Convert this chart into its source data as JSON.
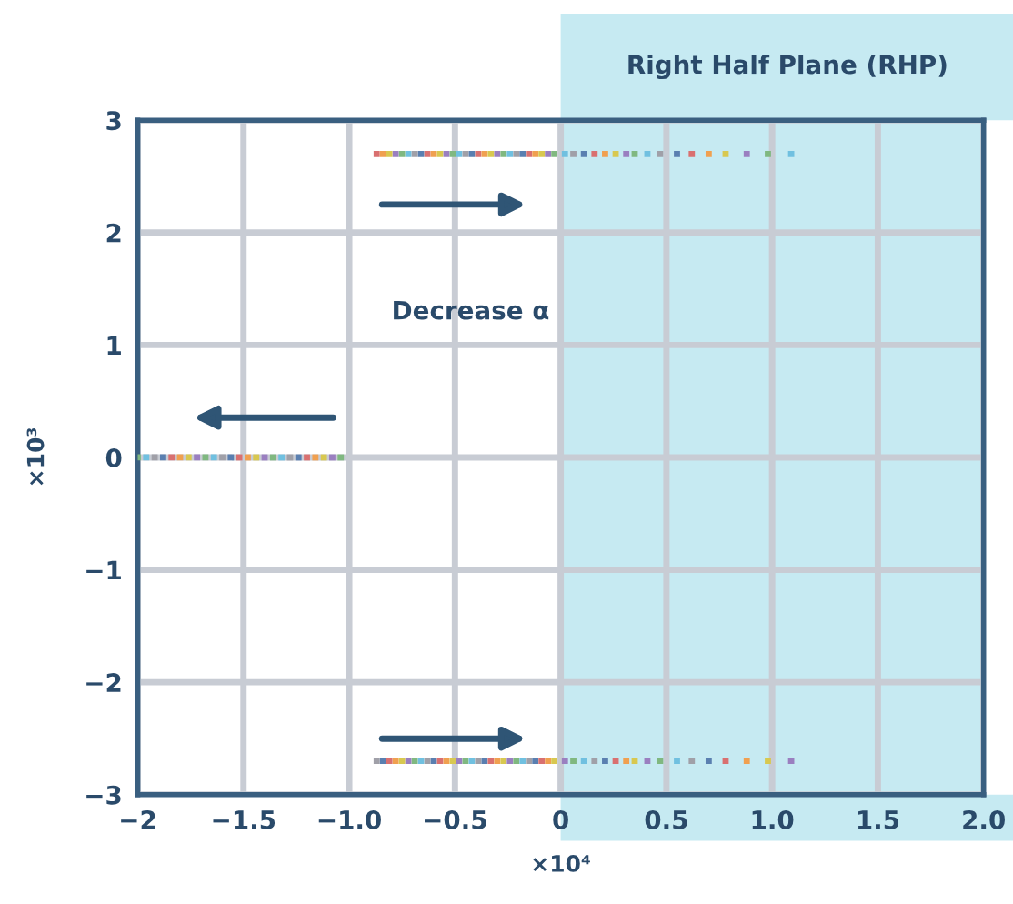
{
  "chart_data": {
    "type": "scatter",
    "xlabel": "×10⁴",
    "ylabel": "×10³",
    "annotations": [
      "Decrease α"
    ],
    "series": [
      {
        "x": [
          -0.87,
          -0.84,
          -0.81,
          -0.78,
          -0.75,
          -0.72,
          -0.69,
          -0.66,
          -0.63,
          -0.6,
          -0.57,
          -0.54,
          -0.51,
          -0.48,
          -0.45,
          -0.42,
          -0.39,
          -0.36,
          -0.33,
          -0.3,
          -0.27,
          -0.24,
          -0.21,
          -0.18,
          -0.15,
          -0.12,
          -0.09,
          -0.06,
          -0.03,
          0.02,
          0.06,
          0.11,
          0.16,
          0.21,
          0.26,
          0.31,
          0.35,
          0.41,
          0.47,
          0.55,
          0.62,
          0.7,
          0.78,
          0.88,
          0.98,
          1.09
        ],
        "values": [
          2.7,
          2.7,
          2.7,
          2.7,
          2.7,
          2.7,
          2.7,
          2.7,
          2.7,
          2.7,
          2.7,
          2.7,
          2.7,
          2.7,
          2.7,
          2.7,
          2.7,
          2.7,
          2.7,
          2.7,
          2.7,
          2.7,
          2.7,
          2.7,
          2.7,
          2.7,
          2.7,
          2.7,
          2.7,
          2.7,
          2.7,
          2.7,
          2.7,
          2.7,
          2.7,
          2.7,
          2.7,
          2.7,
          2.7,
          2.7,
          2.7,
          2.7,
          2.7,
          2.7,
          2.7,
          2.7
        ],
        "colors": [
          "#d97070",
          "#f0a050",
          "#d8c850",
          "#9a7fc0",
          "#80b880",
          "#70c0e0",
          "#a0a0a8",
          "#5a7fb0",
          "#d97070",
          "#f0a050",
          "#d8c850",
          "#9a7fc0",
          "#80b880",
          "#70c0e0",
          "#a0a0a8",
          "#5a7fb0",
          "#d97070",
          "#f0a050",
          "#d8c850",
          "#9a7fc0",
          "#80b880",
          "#70c0e0",
          "#a0a0a8",
          "#5a7fb0",
          "#d97070",
          "#f0a050",
          "#d8c850",
          "#9a7fc0",
          "#80b880",
          "#70c0e0",
          "#a0a0a8",
          "#5a7fb0",
          "#d97070",
          "#f0a050",
          "#d8c850",
          "#9a7fc0",
          "#80b880",
          "#70c0e0",
          "#a0a0a8",
          "#5a7fb0",
          "#d97070",
          "#f0a050",
          "#d8c850",
          "#9a7fc0",
          "#80b880",
          "#70c0e0"
        ]
      },
      {
        "x": [
          -0.87,
          -0.84,
          -0.81,
          -0.78,
          -0.75,
          -0.72,
          -0.69,
          -0.66,
          -0.63,
          -0.6,
          -0.57,
          -0.54,
          -0.51,
          -0.48,
          -0.45,
          -0.42,
          -0.39,
          -0.36,
          -0.33,
          -0.3,
          -0.27,
          -0.24,
          -0.21,
          -0.18,
          -0.15,
          -0.12,
          -0.09,
          -0.06,
          -0.03,
          0.02,
          0.06,
          0.11,
          0.16,
          0.21,
          0.26,
          0.31,
          0.35,
          0.41,
          0.47,
          0.55,
          0.62,
          0.7,
          0.78,
          0.88,
          0.98,
          1.09
        ],
        "values": [
          -2.7,
          -2.7,
          -2.7,
          -2.7,
          -2.7,
          -2.7,
          -2.7,
          -2.7,
          -2.7,
          -2.7,
          -2.7,
          -2.7,
          -2.7,
          -2.7,
          -2.7,
          -2.7,
          -2.7,
          -2.7,
          -2.7,
          -2.7,
          -2.7,
          -2.7,
          -2.7,
          -2.7,
          -2.7,
          -2.7,
          -2.7,
          -2.7,
          -2.7,
          -2.7,
          -2.7,
          -2.7,
          -2.7,
          -2.7,
          -2.7,
          -2.7,
          -2.7,
          -2.7,
          -2.7,
          -2.7,
          -2.7,
          -2.7,
          -2.7,
          -2.7,
          -2.7,
          -2.7
        ],
        "colors": [
          "#a0a0a8",
          "#5a7fb0",
          "#d97070",
          "#f0a050",
          "#d8c850",
          "#9a7fc0",
          "#80b880",
          "#70c0e0",
          "#a0a0a8",
          "#5a7fb0",
          "#d97070",
          "#f0a050",
          "#d8c850",
          "#9a7fc0",
          "#80b880",
          "#70c0e0",
          "#a0a0a8",
          "#5a7fb0",
          "#d97070",
          "#f0a050",
          "#d8c850",
          "#9a7fc0",
          "#80b880",
          "#70c0e0",
          "#a0a0a8",
          "#5a7fb0",
          "#d97070",
          "#f0a050",
          "#d8c850",
          "#9a7fc0",
          "#80b880",
          "#70c0e0",
          "#a0a0a8",
          "#5a7fb0",
          "#d97070",
          "#f0a050",
          "#d8c850",
          "#9a7fc0",
          "#80b880",
          "#70c0e0",
          "#a0a0a8",
          "#5a7fb0",
          "#d97070",
          "#f0a050",
          "#d8c850",
          "#9a7fc0"
        ]
      },
      {
        "x": [
          -2.0,
          -1.96,
          -1.92,
          -1.88,
          -1.84,
          -1.8,
          -1.76,
          -1.72,
          -1.68,
          -1.64,
          -1.6,
          -1.56,
          -1.52,
          -1.48,
          -1.44,
          -1.4,
          -1.36,
          -1.32,
          -1.28,
          -1.24,
          -1.2,
          -1.16,
          -1.12,
          -1.08,
          -1.04
        ],
        "values": [
          0,
          0,
          0,
          0,
          0,
          0,
          0,
          0,
          0,
          0,
          0,
          0,
          0,
          0,
          0,
          0,
          0,
          0,
          0,
          0,
          0,
          0,
          0,
          0,
          0
        ],
        "colors": [
          "#80b880",
          "#70c0e0",
          "#a0a0a8",
          "#5a7fb0",
          "#d97070",
          "#f0a050",
          "#d8c850",
          "#9a7fc0",
          "#80b880",
          "#70c0e0",
          "#a0a0a8",
          "#5a7fb0",
          "#d97070",
          "#f0a050",
          "#d8c850",
          "#9a7fc0",
          "#80b880",
          "#70c0e0",
          "#a0a0a8",
          "#5a7fb0",
          "#d97070",
          "#f0a050",
          "#d8c850",
          "#9a7fc0",
          "#80b880"
        ]
      }
    ],
    "marker": "square",
    "bands": [
      {
        "axis": "x",
        "from": 0,
        "to": 2,
        "label": "Right Half Plane (RHP)",
        "color": "#c6eaf2"
      }
    ],
    "xlim": [
      -2,
      2
    ],
    "ylim": [
      -3,
      3
    ],
    "xticks": [
      {
        "value": -2,
        "label": "−2"
      },
      {
        "value": -1.5,
        "label": "−1.5"
      },
      {
        "value": -1,
        "label": "−1.0"
      },
      {
        "value": -0.5,
        "label": "−0.5"
      },
      0,
      0.5,
      {
        "value": 1,
        "label": "1.0"
      },
      1.5,
      {
        "value": 2,
        "label": "2.0"
      }
    ],
    "yticks": [
      {
        "value": -3,
        "label": "−3"
      },
      {
        "value": -2,
        "label": "−2"
      },
      {
        "value": -1,
        "label": "−1"
      },
      0,
      1,
      2,
      3
    ],
    "grid": true
  }
}
